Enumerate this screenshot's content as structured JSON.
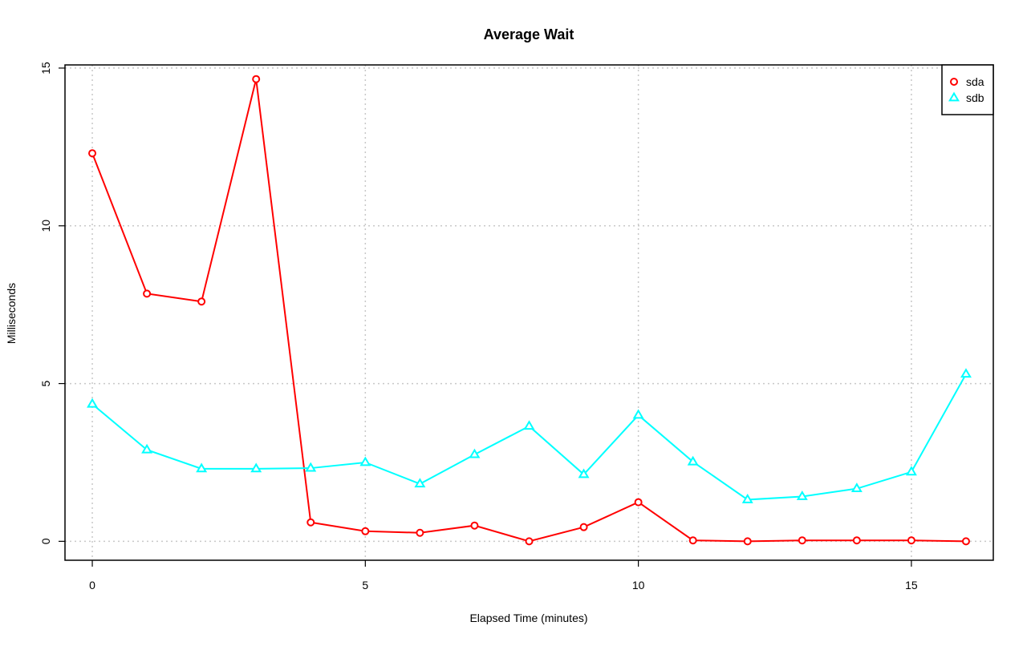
{
  "chart_data": {
    "type": "line",
    "title": "Average Wait",
    "xlabel": "Elapsed Time (minutes)",
    "ylabel": "Milliseconds",
    "x": [
      0,
      1,
      2,
      3,
      4,
      5,
      6,
      7,
      8,
      9,
      10,
      11,
      12,
      13,
      14,
      15,
      16
    ],
    "xlim": [
      -0.5,
      16.5
    ],
    "ylim": [
      -0.6,
      15.1
    ],
    "xticks": [
      0,
      5,
      10,
      15
    ],
    "yticks": [
      0,
      5,
      10,
      15
    ],
    "xtick_labels": [
      "0",
      "5",
      "10",
      "15"
    ],
    "ytick_labels": [
      "0",
      "5",
      "10",
      "15"
    ],
    "grid": true,
    "legend_position": "top-right",
    "series": [
      {
        "name": "sda",
        "color": "#ff0000",
        "marker": "circle",
        "values": [
          12.3,
          7.85,
          7.6,
          14.65,
          0.6,
          0.32,
          0.27,
          0.5,
          0.0,
          0.45,
          1.24,
          0.03,
          0.0,
          0.03,
          0.03,
          0.03,
          0.0
        ]
      },
      {
        "name": "sdb",
        "color": "#00ffff",
        "marker": "triangle",
        "values": [
          4.35,
          2.9,
          2.3,
          2.3,
          2.32,
          2.5,
          1.82,
          2.75,
          3.65,
          2.12,
          4.0,
          2.52,
          1.32,
          1.42,
          1.67,
          2.2,
          5.3
        ]
      }
    ]
  }
}
